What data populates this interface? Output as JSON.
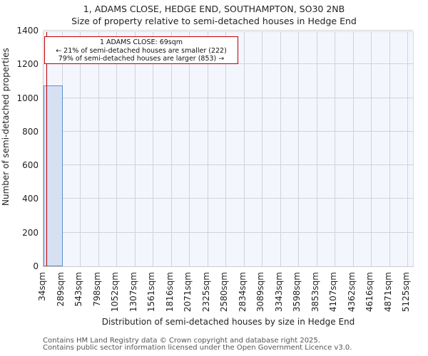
{
  "chart_data": {
    "type": "bar",
    "title": "1, ADAMS CLOSE, HEDGE END, SOUTHAMPTON, SO30 2NB",
    "subtitle": "Size of property relative to semi-detached houses in Hedge End",
    "xlabel": "Distribution of semi-detached houses by size in Hedge End",
    "ylabel": "Number of semi-detached properties",
    "ylim": [
      0,
      1400
    ],
    "yticks": [
      0,
      200,
      400,
      600,
      800,
      1000,
      1200,
      1400
    ],
    "categories": [
      "34sqm",
      "289sqm",
      "543sqm",
      "798sqm",
      "1052sqm",
      "1307sqm",
      "1561sqm",
      "1816sqm",
      "2071sqm",
      "2325sqm",
      "2580sqm",
      "2834sqm",
      "3089sqm",
      "3343sqm",
      "3598sqm",
      "3853sqm",
      "4107sqm",
      "4362sqm",
      "4616sqm",
      "4871sqm",
      "5125sqm"
    ],
    "values": [
      1075,
      0,
      0,
      0,
      0,
      0,
      0,
      0,
      0,
      0,
      0,
      0,
      0,
      0,
      0,
      0,
      0,
      0,
      0,
      0
    ],
    "grid": true,
    "marker": {
      "value_sqm": 69,
      "color": "#c00000"
    },
    "annotation": {
      "line1": "1 ADAMS CLOSE: 69sqm",
      "line2": "← 21% of semi-detached houses are smaller (222)",
      "line3": "79% of semi-detached houses are larger (853) →"
    },
    "colors": {
      "bar_fill": "#d6e0f2",
      "bar_edge": "#5b8fd1",
      "background": "#f4f6fe"
    }
  },
  "footer": {
    "line1": "Contains HM Land Registry data © Crown copyright and database right 2025.",
    "line2": "Contains public sector information licensed under the Open Government Licence v3.0."
  }
}
